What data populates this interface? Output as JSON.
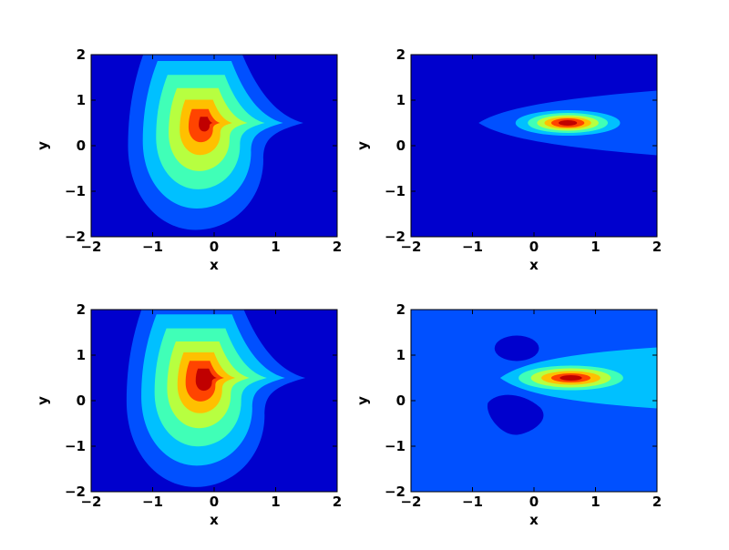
{
  "chart_data": [
    {
      "type": "contour",
      "xlabel": "x",
      "ylabel": "y",
      "xlim": [
        -2,
        2
      ],
      "ylim": [
        -2,
        2
      ],
      "xticks": [
        {
          "value": -2,
          "label": "−2"
        },
        {
          "value": -1,
          "label": "−1"
        },
        0,
        1,
        2
      ],
      "yticks": [
        {
          "value": -2,
          "label": "−2"
        },
        {
          "value": -1,
          "label": "−1"
        },
        0,
        1,
        2
      ]
    },
    {
      "type": "contour",
      "xlabel": "x",
      "ylabel": "y",
      "xlim": [
        -2,
        2
      ],
      "ylim": [
        -2,
        2
      ],
      "xticks": [
        {
          "value": -2,
          "label": "−2"
        },
        {
          "value": -1,
          "label": "−1"
        },
        0,
        1,
        2
      ],
      "yticks": [
        {
          "value": -2,
          "label": "−2"
        },
        {
          "value": -1,
          "label": "−1"
        },
        0,
        1,
        2
      ]
    },
    {
      "type": "contour",
      "xlabel": "x",
      "ylabel": "y",
      "xlim": [
        -2,
        2
      ],
      "ylim": [
        -2,
        2
      ],
      "xticks": [
        {
          "value": -2,
          "label": "−2"
        },
        {
          "value": -1,
          "label": "−1"
        },
        0,
        1,
        2
      ],
      "yticks": [
        {
          "value": -2,
          "label": "−2"
        },
        {
          "value": -1,
          "label": "−1"
        },
        0,
        1,
        2
      ]
    },
    {
      "type": "contour",
      "xlabel": "x",
      "ylabel": "y",
      "xlim": [
        -2,
        2
      ],
      "ylim": [
        -2,
        2
      ],
      "xticks": [
        {
          "value": -2,
          "label": "−2"
        },
        {
          "value": -1,
          "label": "−1"
        },
        0,
        1,
        2
      ],
      "yticks": [
        {
          "value": -2,
          "label": "−2"
        },
        {
          "value": -1,
          "label": "−1"
        },
        0,
        1,
        2
      ]
    }
  ]
}
